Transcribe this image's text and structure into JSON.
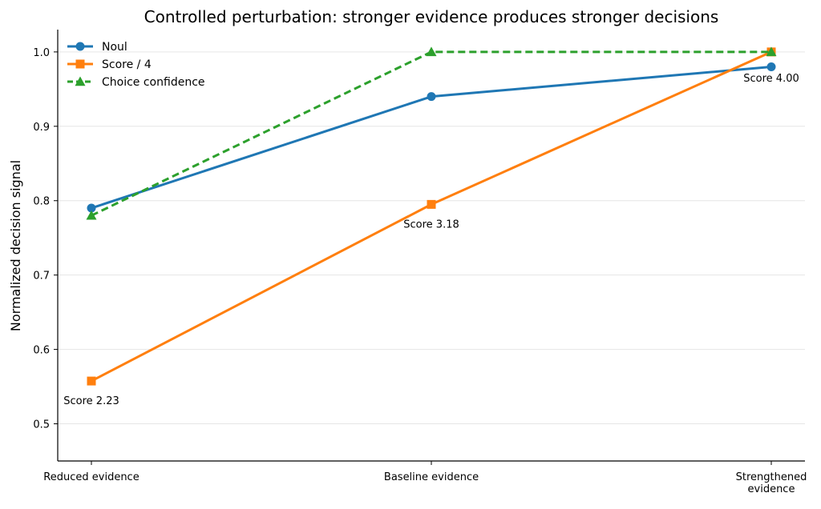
{
  "chart_data": {
    "type": "line",
    "title": "Controlled perturbation: stronger evidence produces stronger decisions",
    "xlabel": "",
    "ylabel": "Normalized decision signal",
    "categories": [
      [
        "Reduced evidence"
      ],
      [
        "Baseline evidence"
      ],
      [
        "Strengthened",
        "evidence"
      ]
    ],
    "ylim": [
      0.45,
      1.03
    ],
    "yticks": [
      0.5,
      0.6,
      0.7,
      0.8,
      0.9,
      1.0
    ],
    "ytick_labels": [
      "0.5",
      "0.6",
      "0.7",
      "0.8",
      "0.9",
      "1.0"
    ],
    "grid": "horizontal",
    "legend_position": "top-left",
    "series": [
      {
        "name": "Noul",
        "values": [
          0.79,
          0.94,
          0.98
        ],
        "color": "#1f77b4",
        "marker": "circle",
        "dash": "solid"
      },
      {
        "name": "Score / 4",
        "values": [
          0.5575,
          0.795,
          1.0
        ],
        "color": "#ff7f0e",
        "marker": "square",
        "dash": "solid"
      },
      {
        "name": "Choice confidence",
        "values": [
          0.78,
          1.0,
          1.0
        ],
        "color": "#2ca02c",
        "marker": "triangle",
        "dash": "dashed"
      }
    ],
    "annotations": [
      {
        "text": "Score 2.23",
        "category_index": 0,
        "y": 0.5575
      },
      {
        "text": "Score 3.18",
        "category_index": 1,
        "y": 0.795
      },
      {
        "text": "Score 4.00",
        "category_index": 2,
        "y": 1.0
      }
    ]
  }
}
